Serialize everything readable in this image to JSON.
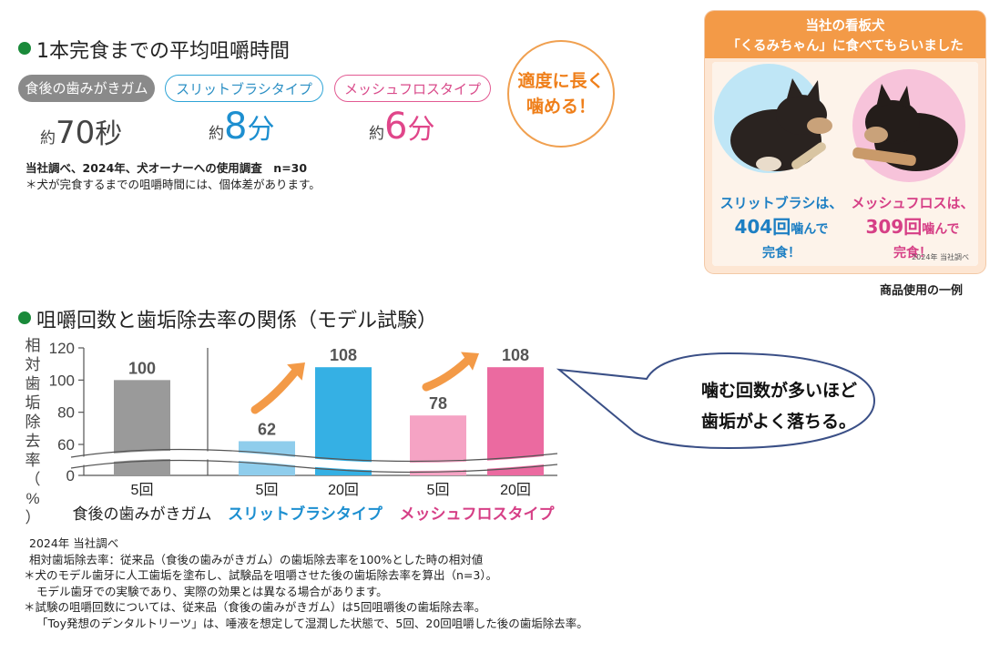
{
  "section1": {
    "title": "1本完食までの平均咀嚼時間",
    "pills": [
      "食後の歯みがきガム",
      "スリットブラシタイプ",
      "メッシュフロスタイプ"
    ],
    "times": [
      {
        "prefix": "約",
        "value": "70",
        "unit": "秒"
      },
      {
        "prefix": "約",
        "value": "8",
        "unit": "分"
      },
      {
        "prefix": "約",
        "value": "6",
        "unit": "分"
      }
    ],
    "badge_line1": "適度に長く",
    "badge_line2": "噛める！",
    "survey_note": "当社調べ、2024年、犬オーナーへの使用調査　n=30",
    "survey_note2": "＊犬が完食するまでの咀嚼時間には、個体差があります。"
  },
  "photo": {
    "header_line1": "当社の看板犬",
    "header_line2": "「くるみちゃん」に食べてもらいました",
    "left_line1": "スリットブラシは、",
    "left_count": "404回",
    "left_verb": "噛んで",
    "left_line3": "完食！",
    "right_line1": "メッシュフロスは、",
    "right_count": "309回",
    "right_verb": "噛んで",
    "right_line3": "完食！",
    "credit": "2024年 当社調べ",
    "caption": "商品使用の一例"
  },
  "section2": {
    "title": "咀嚼回数と歯垢除去率の関係（モデル試験）",
    "bubble_line1": "噛む回数が多いほど",
    "bubble_line2": "歯垢がよく落ちる。"
  },
  "chart_data": {
    "type": "bar",
    "ylabel": "相対歯垢除去率（%）",
    "y_ticks": [
      0,
      60,
      80,
      100,
      120
    ],
    "ylim": [
      0,
      120
    ],
    "axis_break": true,
    "groups": [
      {
        "name": "食後の歯みがきガム",
        "color": "#222222",
        "bars": [
          {
            "label": "5回",
            "value": 100,
            "color": "#9a9a9a"
          }
        ]
      },
      {
        "name": "スリットブラシタイプ",
        "color": "#1d8fd0",
        "bars": [
          {
            "label": "5回",
            "value": 62,
            "color": "#8fcdec"
          },
          {
            "label": "20回",
            "value": 108,
            "color": "#35b0e4"
          }
        ]
      },
      {
        "name": "メッシュフロスタイプ",
        "color": "#d63f86",
        "bars": [
          {
            "label": "5回",
            "value": 78,
            "color": "#f5a3c4"
          },
          {
            "label": "20回",
            "value": 108,
            "color": "#eb6aa0"
          }
        ]
      }
    ],
    "value_label_color": "#555555",
    "accent": "#f39a47"
  },
  "footnotes": [
    "2024年 当社調べ",
    "相対歯垢除去率：従来品（食後の歯みがきガム）の歯垢除去率を100%とした時の相対値",
    "＊犬のモデル歯牙に人工歯垢を塗布し、試験品を咀嚼させた後の歯垢除去率を算出（n=3）。",
    "モデル歯牙での実験であり、実際の効果とは異なる場合があります。",
    "＊試験の咀嚼回数については、従来品（食後の歯みがきガム）は5回咀嚼後の歯垢除去率。",
    "「Toy発想のデンタルトリーツ」は、唾液を想定して湿潤した状態で、5回、20回咀嚼した後の歯垢除去率。"
  ]
}
